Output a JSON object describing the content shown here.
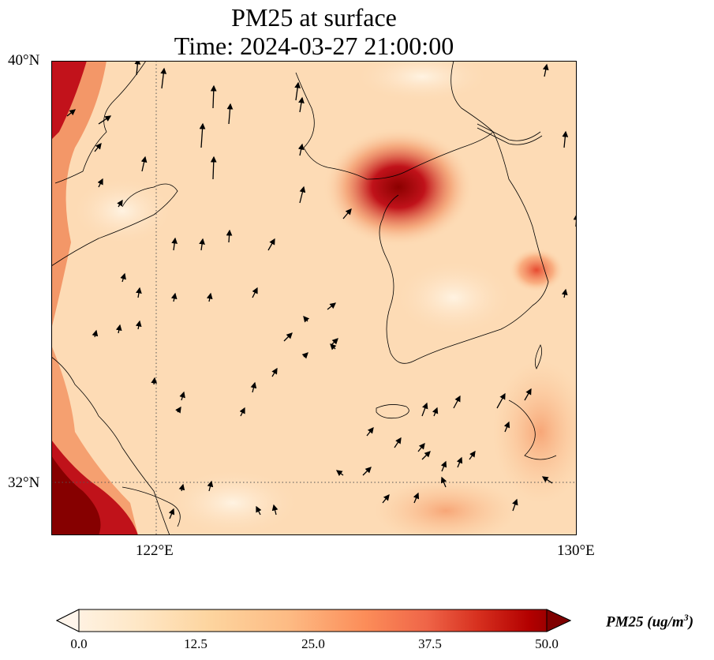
{
  "title": {
    "line1": "PM25 at surface",
    "line2": "Time: 2024-03-27 21:00:00"
  },
  "axes": {
    "lat_ticks": [
      "40°N",
      "32°N"
    ],
    "lon_ticks": [
      "122°E",
      "130°E"
    ],
    "lat_range": [
      31,
      40
    ],
    "lon_range": [
      120,
      130
    ]
  },
  "colorbar": {
    "label": "PM25 (ug/m",
    "label_sup": "3",
    "label_close": ")",
    "ticks": [
      "0.0",
      "12.5",
      "25.0",
      "37.5",
      "50.0"
    ],
    "range": [
      0,
      50
    ],
    "colors": [
      "#fff5eb",
      "#fdd49e",
      "#fdbb84",
      "#fc8d59",
      "#ef6548",
      "#d7301f",
      "#b30000",
      "#7f0000"
    ]
  },
  "map": {
    "gridlines": "dotted at 122°E and 32°N",
    "coastline_color": "#000000",
    "wind_arrows": "black quiver arrows"
  }
}
